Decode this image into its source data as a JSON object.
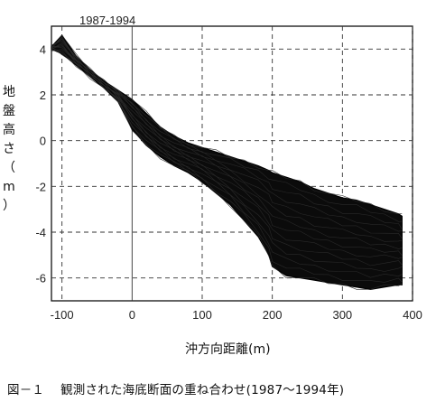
{
  "chart_data": {
    "type": "line",
    "title": "1987-1994",
    "xlabel": "沖方向距離(m)",
    "ylabel": "地\n盤\n高\nさ\n（\nm\n）",
    "xlim": [
      -115,
      400
    ],
    "ylim": [
      -7,
      5
    ],
    "xticks": [
      -100,
      0,
      100,
      200,
      300,
      400
    ],
    "yticks": [
      4,
      2,
      0,
      -2,
      -4,
      -6
    ],
    "grid": "dashed",
    "series_description_envelope": {
      "x": [
        -115,
        -100,
        -80,
        -60,
        -40,
        -20,
        0,
        20,
        40,
        60,
        80,
        100,
        120,
        140,
        160,
        180,
        195,
        200,
        220,
        240,
        260,
        280,
        300,
        320,
        340,
        360,
        380,
        385
      ],
      "upper": [
        4.1,
        4.6,
        3.7,
        3.1,
        2.6,
        2.2,
        1.8,
        1.2,
        0.6,
        0.2,
        -0.1,
        -0.3,
        -0.5,
        -0.7,
        -0.9,
        -1.1,
        -1.3,
        -1.4,
        -1.6,
        -1.8,
        -2.1,
        -2.3,
        -2.5,
        -2.6,
        -2.8,
        -3.0,
        -3.2,
        -3.3
      ],
      "lower": [
        4.0,
        3.8,
        3.3,
        2.8,
        2.3,
        1.7,
        0.5,
        -0.2,
        -0.7,
        -1.1,
        -1.4,
        -1.8,
        -2.3,
        -2.8,
        -3.5,
        -4.2,
        -5.0,
        -5.5,
        -5.9,
        -6.0,
        -6.1,
        -6.2,
        -6.3,
        -6.4,
        -6.5,
        -6.4,
        -6.3,
        -6.3
      ]
    }
  },
  "caption": {
    "number": "図－１",
    "text": "観測された海底断面の重ね合わせ(1987～1994年)"
  }
}
